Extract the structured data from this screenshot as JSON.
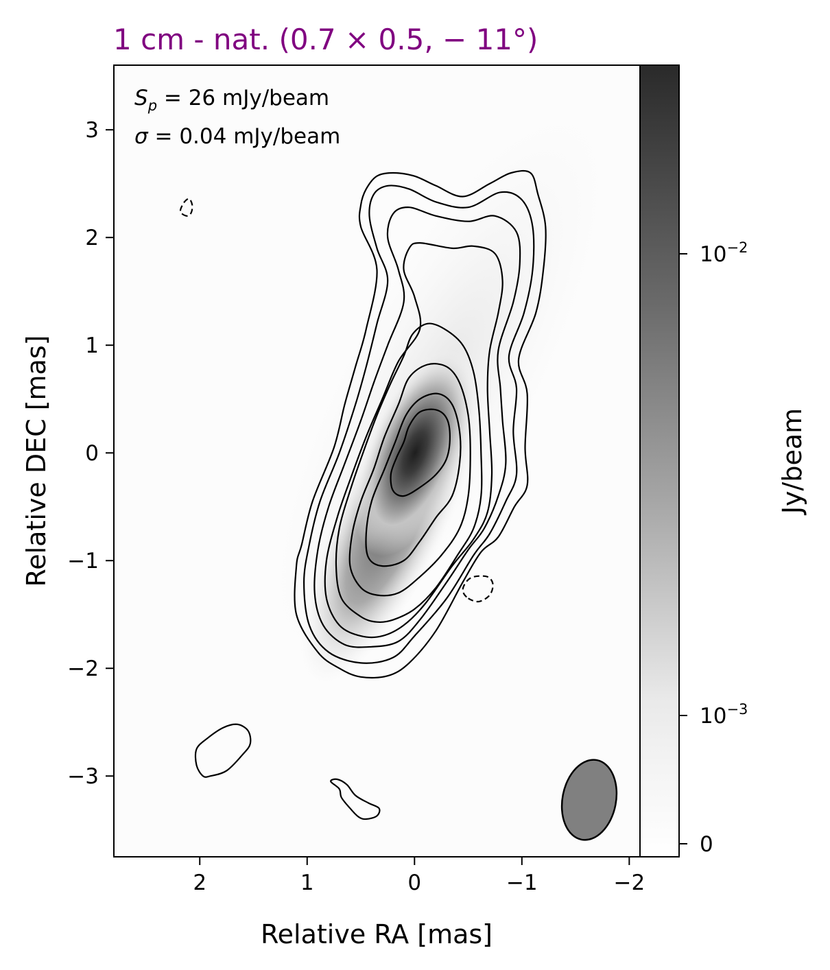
{
  "title": "1 cm - nat. (0.7 × 0.5, − 11°)",
  "title_color": "#800080",
  "annotations": {
    "peak_label": "S",
    "peak_sub": "p",
    "peak_value": " = 26 mJy/beam",
    "rms_label": "σ",
    "rms_value": " = 0.04 mJy/beam"
  },
  "chart_data": {
    "type": "heatmap",
    "xlabel": "Relative RA [mas]",
    "ylabel": "Relative DEC [mas]",
    "xlim": [
      2.8,
      -2.1
    ],
    "ylim": [
      -3.75,
      3.6
    ],
    "xticks": [
      {
        "value": 2,
        "label": "2"
      },
      {
        "value": 1,
        "label": "1"
      },
      {
        "value": 0,
        "label": "0"
      },
      {
        "value": -1,
        "label": "−1"
      },
      {
        "value": -2,
        "label": "−2"
      }
    ],
    "yticks": [
      {
        "value": 3,
        "label": "3"
      },
      {
        "value": 2,
        "label": "2"
      },
      {
        "value": 1,
        "label": "1"
      },
      {
        "value": 0,
        "label": "0"
      },
      {
        "value": -1,
        "label": "−1"
      },
      {
        "value": -2,
        "label": "−2"
      },
      {
        "value": -3,
        "label": "−3"
      }
    ],
    "colorbar": {
      "label": "Jy/beam",
      "scale": "log",
      "colormap": "gray_r",
      "ticks": [
        {
          "value": 0,
          "base": "0",
          "exp": ""
        },
        {
          "value": 0.001,
          "base": "10",
          "exp": "−3"
        },
        {
          "value": 0.01,
          "base": "10",
          "exp": "−2"
        }
      ],
      "color_low": "#ffffff",
      "color_high": "#2a2a2a"
    },
    "peak_flux_mJy_per_beam": 26,
    "rms_mJy_per_beam": 0.04,
    "core_position": [
      0.0,
      0.05
    ],
    "beam": {
      "major_mas": 0.7,
      "minor_mas": 0.5,
      "pa_deg": -11,
      "center": [
        -1.65,
        -3.2
      ],
      "color": "#808080"
    },
    "contours": [
      {
        "level": 1,
        "style": "solid",
        "points": [
          [
            0.5,
            -2.08
          ],
          [
            0.25,
            -2.07
          ],
          [
            0.05,
            -1.95
          ],
          [
            -0.2,
            -1.65
          ],
          [
            -0.45,
            -1.2
          ],
          [
            -0.62,
            -0.92
          ],
          [
            -0.78,
            -0.78
          ],
          [
            -0.93,
            -0.5
          ],
          [
            -1.05,
            -0.3
          ],
          [
            -1.03,
            0.05
          ],
          [
            -1.05,
            0.55
          ],
          [
            -0.97,
            0.87
          ],
          [
            -1.13,
            1.3
          ],
          [
            -1.2,
            1.7
          ],
          [
            -1.22,
            2.1
          ],
          [
            -1.15,
            2.4
          ],
          [
            -1.08,
            2.6
          ],
          [
            -0.9,
            2.6
          ],
          [
            -0.7,
            2.5
          ],
          [
            -0.45,
            2.38
          ],
          [
            -0.2,
            2.48
          ],
          [
            0.0,
            2.57
          ],
          [
            0.2,
            2.6
          ],
          [
            0.35,
            2.57
          ],
          [
            0.45,
            2.45
          ],
          [
            0.5,
            2.3
          ],
          [
            0.5,
            2.1
          ],
          [
            0.35,
            1.7
          ],
          [
            0.45,
            1.15
          ],
          [
            0.55,
            0.8
          ],
          [
            0.65,
            0.45
          ],
          [
            0.75,
            0.05
          ],
          [
            0.95,
            -0.45
          ],
          [
            1.05,
            -0.85
          ],
          [
            1.1,
            -1.05
          ],
          [
            1.1,
            -1.5
          ],
          [
            0.9,
            -1.85
          ],
          [
            0.7,
            -2.0
          ]
        ]
      },
      {
        "level": 2,
        "style": "solid",
        "points": [
          [
            0.5,
            -1.95
          ],
          [
            0.2,
            -1.9
          ],
          [
            0.0,
            -1.7
          ],
          [
            -0.3,
            -1.35
          ],
          [
            -0.55,
            -0.95
          ],
          [
            -0.7,
            -0.75
          ],
          [
            -0.85,
            -0.45
          ],
          [
            -0.95,
            -0.2
          ],
          [
            -0.92,
            0.2
          ],
          [
            -0.95,
            0.6
          ],
          [
            -0.88,
            0.9
          ],
          [
            -1.02,
            1.3
          ],
          [
            -1.1,
            1.7
          ],
          [
            -1.1,
            2.1
          ],
          [
            -1.0,
            2.35
          ],
          [
            -0.8,
            2.42
          ],
          [
            -0.5,
            2.28
          ],
          [
            -0.2,
            2.33
          ],
          [
            0.05,
            2.45
          ],
          [
            0.25,
            2.48
          ],
          [
            0.38,
            2.4
          ],
          [
            0.42,
            2.2
          ],
          [
            0.35,
            1.9
          ],
          [
            0.25,
            1.6
          ],
          [
            0.35,
            1.2
          ],
          [
            0.45,
            0.8
          ],
          [
            0.55,
            0.45
          ],
          [
            0.7,
            0.0
          ],
          [
            0.88,
            -0.45
          ],
          [
            0.98,
            -0.85
          ],
          [
            1.03,
            -1.2
          ],
          [
            0.98,
            -1.6
          ],
          [
            0.8,
            -1.85
          ]
        ]
      },
      {
        "level": 3,
        "style": "solid",
        "points": [
          [
            0.4,
            -1.8
          ],
          [
            0.15,
            -1.75
          ],
          [
            -0.05,
            -1.55
          ],
          [
            -0.3,
            -1.2
          ],
          [
            -0.5,
            -0.9
          ],
          [
            -0.65,
            -0.7
          ],
          [
            -0.78,
            -0.4
          ],
          [
            -0.85,
            -0.1
          ],
          [
            -0.82,
            0.3
          ],
          [
            -0.8,
            0.6
          ],
          [
            -0.78,
            0.95
          ],
          [
            -0.92,
            1.4
          ],
          [
            -0.98,
            1.75
          ],
          [
            -0.95,
            2.05
          ],
          [
            -0.75,
            2.2
          ],
          [
            -0.5,
            2.15
          ],
          [
            -0.2,
            2.2
          ],
          [
            0.05,
            2.28
          ],
          [
            0.2,
            2.22
          ],
          [
            0.25,
            2.0
          ],
          [
            0.15,
            1.7
          ],
          [
            0.1,
            1.4
          ],
          [
            0.25,
            1.0
          ],
          [
            0.38,
            0.65
          ],
          [
            0.5,
            0.3
          ],
          [
            0.65,
            -0.1
          ],
          [
            0.8,
            -0.5
          ],
          [
            0.9,
            -0.9
          ],
          [
            0.93,
            -1.3
          ],
          [
            0.85,
            -1.6
          ],
          [
            0.65,
            -1.78
          ]
        ]
      },
      {
        "level": 4,
        "style": "solid",
        "points": [
          [
            0.3,
            -1.7
          ],
          [
            0.1,
            -1.6
          ],
          [
            -0.1,
            -1.4
          ],
          [
            -0.35,
            -1.05
          ],
          [
            -0.55,
            -0.8
          ],
          [
            -0.68,
            -0.55
          ],
          [
            -0.72,
            -0.2
          ],
          [
            -0.7,
            0.2
          ],
          [
            -0.68,
            0.6
          ],
          [
            -0.7,
            0.95
          ],
          [
            -0.78,
            1.3
          ],
          [
            -0.82,
            1.6
          ],
          [
            -0.75,
            1.85
          ],
          [
            -0.55,
            1.92
          ],
          [
            -0.35,
            1.9
          ],
          [
            -0.05,
            1.95
          ],
          [
            0.05,
            1.9
          ],
          [
            0.1,
            1.7
          ],
          [
            0.0,
            1.45
          ],
          [
            -0.05,
            1.15
          ],
          [
            0.15,
            0.85
          ],
          [
            0.3,
            0.5
          ],
          [
            0.45,
            0.15
          ],
          [
            0.6,
            -0.25
          ],
          [
            0.72,
            -0.6
          ],
          [
            0.82,
            -1.0
          ],
          [
            0.82,
            -1.35
          ],
          [
            0.7,
            -1.6
          ],
          [
            0.5,
            -1.7
          ]
        ]
      },
      {
        "level": 5,
        "style": "solid",
        "points": [
          [
            0.2,
            -1.55
          ],
          [
            0.0,
            -1.45
          ],
          [
            -0.2,
            -1.25
          ],
          [
            -0.4,
            -0.95
          ],
          [
            -0.55,
            -0.7
          ],
          [
            -0.62,
            -0.4
          ],
          [
            -0.62,
            0.0
          ],
          [
            -0.6,
            0.4
          ],
          [
            -0.55,
            0.75
          ],
          [
            -0.45,
            1.0
          ],
          [
            -0.28,
            1.15
          ],
          [
            -0.12,
            1.2
          ],
          [
            0.02,
            1.1
          ],
          [
            0.1,
            0.9
          ],
          [
            0.22,
            0.65
          ],
          [
            0.35,
            0.35
          ],
          [
            0.48,
            0.0
          ],
          [
            0.6,
            -0.35
          ],
          [
            0.7,
            -0.7
          ],
          [
            0.73,
            -1.05
          ],
          [
            0.68,
            -1.35
          ],
          [
            0.5,
            -1.52
          ],
          [
            0.35,
            -1.57
          ]
        ]
      },
      {
        "level": 6,
        "style": "solid",
        "points": [
          [
            0.15,
            -1.3
          ],
          [
            -0.05,
            -1.15
          ],
          [
            -0.25,
            -0.95
          ],
          [
            -0.42,
            -0.7
          ],
          [
            -0.5,
            -0.4
          ],
          [
            -0.52,
            0.0
          ],
          [
            -0.5,
            0.35
          ],
          [
            -0.42,
            0.65
          ],
          [
            -0.3,
            0.8
          ],
          [
            -0.12,
            0.82
          ],
          [
            0.05,
            0.7
          ],
          [
            0.15,
            0.45
          ],
          [
            0.28,
            0.15
          ],
          [
            0.38,
            -0.15
          ],
          [
            0.5,
            -0.45
          ],
          [
            0.58,
            -0.75
          ],
          [
            0.6,
            -1.05
          ],
          [
            0.5,
            -1.25
          ],
          [
            0.35,
            -1.32
          ]
        ]
      },
      {
        "level": 7,
        "style": "solid",
        "points": [
          [
            0.3,
            -1.05
          ],
          [
            0.1,
            -1.0
          ],
          [
            -0.05,
            -0.82
          ],
          [
            -0.2,
            -0.6
          ],
          [
            -0.35,
            -0.4
          ],
          [
            -0.42,
            -0.1
          ],
          [
            -0.42,
            0.2
          ],
          [
            -0.35,
            0.45
          ],
          [
            -0.22,
            0.55
          ],
          [
            -0.05,
            0.5
          ],
          [
            0.08,
            0.35
          ],
          [
            0.18,
            0.1
          ],
          [
            0.28,
            -0.15
          ],
          [
            0.4,
            -0.45
          ],
          [
            0.45,
            -0.75
          ],
          [
            0.43,
            -0.97
          ]
        ]
      },
      {
        "level": 8,
        "style": "solid",
        "points": [
          [
            0.1,
            -0.4
          ],
          [
            -0.05,
            -0.32
          ],
          [
            -0.2,
            -0.2
          ],
          [
            -0.3,
            -0.05
          ],
          [
            -0.33,
            0.15
          ],
          [
            -0.3,
            0.32
          ],
          [
            -0.2,
            0.4
          ],
          [
            -0.05,
            0.38
          ],
          [
            0.05,
            0.25
          ],
          [
            0.1,
            0.1
          ],
          [
            0.17,
            -0.05
          ],
          [
            0.22,
            -0.2
          ],
          [
            0.2,
            -0.35
          ]
        ]
      },
      {
        "level": 1,
        "style": "solid",
        "points": [
          [
            1.9,
            -3.0
          ],
          [
            1.75,
            -2.95
          ],
          [
            1.6,
            -2.8
          ],
          [
            1.53,
            -2.7
          ],
          [
            1.55,
            -2.58
          ],
          [
            1.65,
            -2.52
          ],
          [
            1.78,
            -2.55
          ],
          [
            1.93,
            -2.65
          ],
          [
            2.03,
            -2.75
          ],
          [
            2.03,
            -2.9
          ],
          [
            1.97,
            -3.0
          ]
        ]
      },
      {
        "level": 1,
        "style": "solid",
        "points": [
          [
            0.78,
            -3.05
          ],
          [
            0.7,
            -3.12
          ],
          [
            0.68,
            -3.2
          ],
          [
            0.6,
            -3.3
          ],
          [
            0.52,
            -3.38
          ],
          [
            0.45,
            -3.4
          ],
          [
            0.35,
            -3.37
          ],
          [
            0.33,
            -3.3
          ],
          [
            0.43,
            -3.25
          ],
          [
            0.55,
            -3.18
          ],
          [
            0.63,
            -3.08
          ],
          [
            0.72,
            -3.03
          ]
        ]
      },
      {
        "level": -1,
        "style": "dashed",
        "points": [
          [
            -0.5,
            -1.35
          ],
          [
            -0.6,
            -1.38
          ],
          [
            -0.7,
            -1.32
          ],
          [
            -0.73,
            -1.22
          ],
          [
            -0.68,
            -1.15
          ],
          [
            -0.55,
            -1.15
          ],
          [
            -0.48,
            -1.2
          ],
          [
            -0.45,
            -1.28
          ]
        ]
      },
      {
        "level": -1,
        "style": "dashed",
        "points": [
          [
            2.12,
            2.2
          ],
          [
            2.18,
            2.24
          ],
          [
            2.15,
            2.32
          ],
          [
            2.1,
            2.36
          ],
          [
            2.07,
            2.3
          ],
          [
            2.08,
            2.23
          ]
        ]
      }
    ]
  }
}
